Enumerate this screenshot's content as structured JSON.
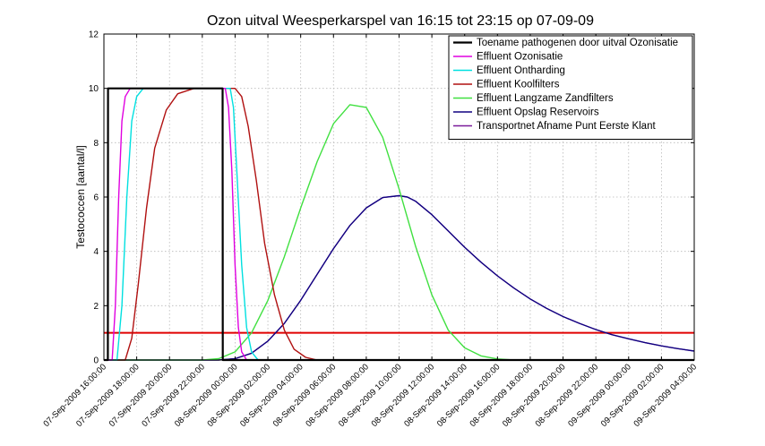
{
  "chart_data": {
    "type": "line",
    "title": "Ozon uitval Weesperkarspel van 16:15 tot 23:15 op 07-09-09",
    "xlabel": "",
    "ylabel": "Testococcen [aantal/l]",
    "ylim": [
      0,
      12
    ],
    "yticks": [
      0,
      2,
      4,
      6,
      8,
      10,
      12
    ],
    "x_unit": "hours since first tick",
    "xlim": [
      0,
      36
    ],
    "xticks": [
      "07-Sep-2009 16:00:00",
      "07-Sep-2009 18:00:00",
      "07-Sep-2009 20:00:00",
      "07-Sep-2009 22:00:00",
      "08-Sep-2009 00:00:00",
      "08-Sep-2009 02:00:00",
      "08-Sep-2009 04:00:00",
      "08-Sep-2009 06:00:00",
      "08-Sep-2009 08:00:00",
      "08-Sep-2009 10:00:00",
      "08-Sep-2009 12:00:00",
      "08-Sep-2009 14:00:00",
      "08-Sep-2009 16:00:00",
      "08-Sep-2009 18:00:00",
      "08-Sep-2009 20:00:00",
      "08-Sep-2009 22:00:00",
      "09-Sep-2009 00:00:00",
      "09-Sep-2009 02:00:00",
      "09-Sep-2009 04:00:00"
    ],
    "grid": true,
    "legend_position": "top-right",
    "threshold": {
      "value": 1,
      "color": "#e00000"
    },
    "series": [
      {
        "name": "Toename pathogenen door uitval Ozonisatie",
        "color": "#000000",
        "x": [
          0,
          0.24,
          0.25,
          7.24,
          7.25,
          36
        ],
        "y": [
          0,
          0,
          10,
          10,
          0,
          0
        ]
      },
      {
        "name": "Effluent Ozonisatie",
        "color": "#e000e0",
        "x": [
          0,
          0.5,
          0.7,
          0.9,
          1.1,
          1.3,
          1.6,
          2.0,
          7.4,
          7.6,
          7.8,
          8.0,
          8.2,
          8.4,
          8.7,
          36
        ],
        "y": [
          0,
          0,
          2,
          6,
          8.8,
          9.7,
          10,
          10,
          10,
          9.3,
          7,
          3.5,
          1.2,
          0.3,
          0,
          0
        ]
      },
      {
        "name": "Effluent Ontharding",
        "color": "#00e0e0",
        "x": [
          0,
          0.8,
          1.1,
          1.4,
          1.7,
          2.0,
          2.4,
          3.0,
          7.7,
          7.9,
          8.1,
          8.4,
          8.7,
          9.0,
          9.4,
          36
        ],
        "y": [
          0,
          0,
          2,
          6,
          8.8,
          9.7,
          10,
          10,
          10,
          9.3,
          7,
          3.5,
          1.2,
          0.3,
          0,
          0
        ]
      },
      {
        "name": "Effluent Koolfilters",
        "color": "#b01010",
        "x": [
          0,
          1.3,
          1.7,
          2.1,
          2.6,
          3.1,
          3.8,
          4.5,
          5.5,
          6.5,
          8.0,
          8.4,
          8.8,
          9.3,
          9.8,
          10.4,
          11.0,
          11.6,
          12.3,
          13.0,
          36
        ],
        "y": [
          0,
          0,
          0.8,
          2.8,
          5.6,
          7.8,
          9.2,
          9.8,
          10,
          10,
          10,
          9.7,
          8.6,
          6.6,
          4.3,
          2.4,
          1.1,
          0.4,
          0.1,
          0,
          0
        ]
      },
      {
        "name": "Effluent Langzame Zandfilters",
        "color": "#40e040",
        "x": [
          0,
          6,
          7,
          8,
          9,
          10,
          11,
          12,
          13,
          14,
          15,
          16,
          17,
          18,
          19,
          20,
          21,
          22,
          23,
          24,
          25,
          36
        ],
        "y": [
          0,
          0,
          0.05,
          0.3,
          1.0,
          2.2,
          3.8,
          5.6,
          7.3,
          8.7,
          9.4,
          9.3,
          8.2,
          6.3,
          4.2,
          2.4,
          1.1,
          0.45,
          0.15,
          0.04,
          0,
          0
        ]
      },
      {
        "name": "Effluent Opslag Reservoirs",
        "color": "#100080",
        "x": [
          0,
          7,
          8,
          9,
          10,
          11,
          12,
          13,
          14,
          15,
          16,
          17,
          18,
          18.5,
          19,
          20,
          21,
          22,
          23,
          24,
          25,
          26,
          27,
          28,
          29,
          30,
          31,
          32,
          33,
          34,
          35,
          36
        ],
        "y": [
          0,
          0,
          0.05,
          0.25,
          0.7,
          1.35,
          2.2,
          3.15,
          4.1,
          4.95,
          5.6,
          5.98,
          6.05,
          6.0,
          5.85,
          5.35,
          4.75,
          4.15,
          3.6,
          3.1,
          2.65,
          2.25,
          1.9,
          1.6,
          1.35,
          1.12,
          0.93,
          0.78,
          0.64,
          0.52,
          0.42,
          0.33
        ]
      },
      {
        "name": "Transportnet Afname Punt Eerste Klant",
        "color": "#7a1a9a",
        "x": [
          0,
          7,
          8,
          9,
          10,
          11,
          12,
          13,
          14,
          15,
          16,
          17,
          18,
          18.5,
          19,
          20,
          21,
          22,
          23,
          24,
          25,
          26,
          27,
          28,
          29,
          30,
          31,
          32,
          33,
          34,
          35,
          36
        ],
        "y": [
          0,
          0,
          0.05,
          0.25,
          0.7,
          1.35,
          2.2,
          3.15,
          4.1,
          4.95,
          5.6,
          5.98,
          6.05,
          6.0,
          5.85,
          5.35,
          4.75,
          4.15,
          3.6,
          3.1,
          2.65,
          2.25,
          1.9,
          1.6,
          1.35,
          1.12,
          0.93,
          0.78,
          0.64,
          0.52,
          0.42,
          0.33
        ]
      }
    ]
  }
}
